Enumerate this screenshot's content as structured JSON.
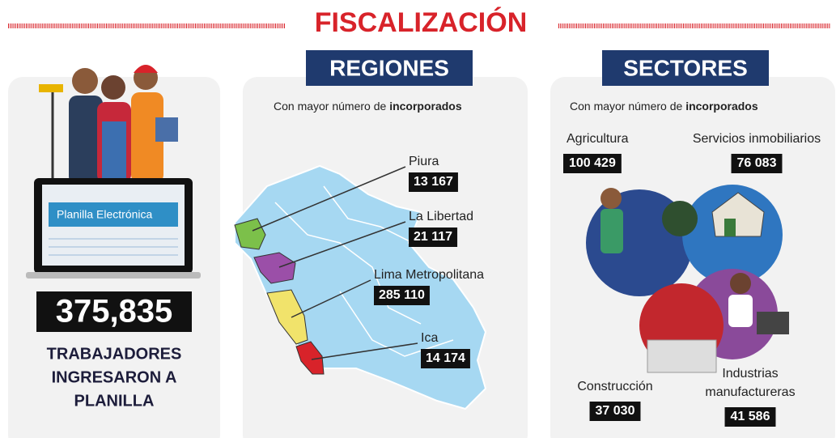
{
  "title": "FISCALIZACIÓN",
  "summary": {
    "screen_text": "Planilla Electrónica",
    "value": "375,835",
    "caption": [
      "TRABAJADORES",
      "INGRESARON A",
      "PLANILLA"
    ]
  },
  "regions": {
    "heading": "REGIONES",
    "subtitle": "Con mayor número de",
    "subtitle_bold": "incorporados",
    "items": [
      {
        "label": "Piura",
        "value": "13 167"
      },
      {
        "label": "La Libertad",
        "value": "21 117"
      },
      {
        "label": "Lima Metropolitana",
        "value": "285 110"
      },
      {
        "label": "Ica",
        "value": "14 174"
      }
    ]
  },
  "sectors": {
    "heading": "SECTORES",
    "subtitle": "Con mayor número de",
    "subtitle_bold": "incorporados",
    "items": [
      {
        "label": [
          "Agricultura"
        ],
        "value": "100 429"
      },
      {
        "label": [
          "Servicios inmobiliarios"
        ],
        "value": "76 083"
      },
      {
        "label": [
          "Construcción"
        ],
        "value": "37 030"
      },
      {
        "label": [
          "Industrias",
          "manufactureras"
        ],
        "value": "41 586"
      }
    ]
  }
}
